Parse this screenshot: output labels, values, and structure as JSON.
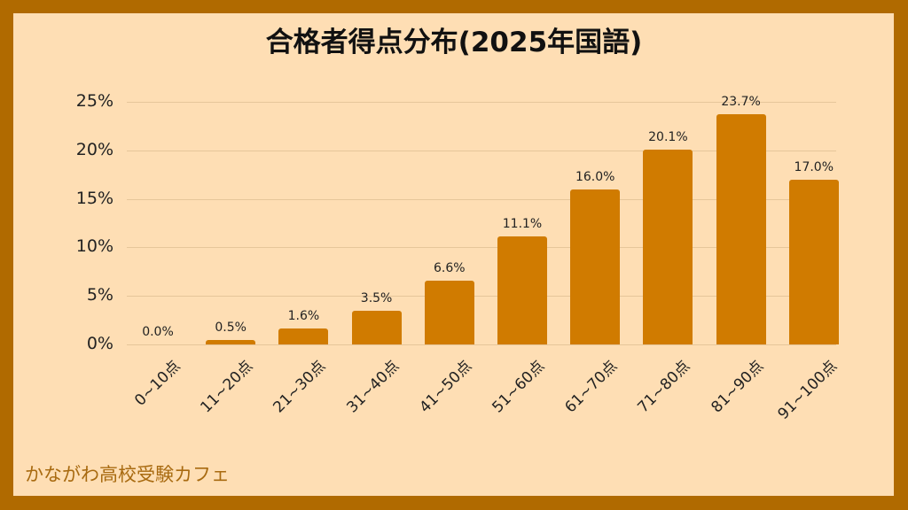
{
  "title": "合格者得点分布(2025年国語)",
  "footer": "かながわ高校受験カフェ",
  "colors": {
    "border": "#b06a00",
    "background": "#fedeb4",
    "bar": "#d07b00",
    "grid": "#e6c69a",
    "footer_text": "#a86a10"
  },
  "y_axis": {
    "ticks": [
      "0%",
      "5%",
      "10%",
      "15%",
      "20%",
      "25%"
    ]
  },
  "chart_data": {
    "type": "bar",
    "title": "合格者得点分布(2025年国語)",
    "xlabel": "",
    "ylabel": "",
    "categories": [
      "0~10点",
      "11~20点",
      "21~30点",
      "31~40点",
      "41~50点",
      "51~60点",
      "61~70点",
      "71~80点",
      "81~90点",
      "91~100点"
    ],
    "values": [
      0.0,
      0.5,
      1.6,
      3.5,
      6.6,
      11.1,
      16.0,
      20.1,
      23.7,
      17.0
    ],
    "value_labels": [
      "0.0%",
      "0.5%",
      "1.6%",
      "3.5%",
      "6.6%",
      "11.1%",
      "16.0%",
      "20.1%",
      "23.7%",
      "17.0%"
    ],
    "ylim": [
      0,
      25
    ],
    "yticks": [
      0,
      5,
      10,
      15,
      20,
      25
    ],
    "unit": "%",
    "grid": true,
    "legend": null
  }
}
